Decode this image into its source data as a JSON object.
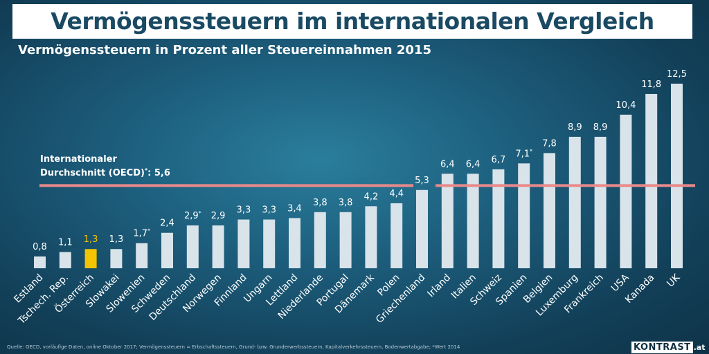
{
  "title": "Vermögenssteuern im internationalen Vergleich",
  "subtitle": "Vermögenssteuern in Prozent aller Steuereinnahmen 2015",
  "footer": "Quelle: OECD, vorläufige Daten, online Oktober 2017; Vermögenssteuern = Erbschaftssteuern, Grund- bzw. Grunderwerbssteuern, Kapitalverkehrssteuern, Bodenwertabgabe; *Wert 2014",
  "logo": {
    "word": "KONTRAST",
    "tld": ".at"
  },
  "colors": {
    "bar": "#d8e3ea",
    "highlight": "#f5c400",
    "average_line": "#e98a8a",
    "text": "#ffffff"
  },
  "chart_data": {
    "type": "bar",
    "title": "Vermögenssteuern in Prozent aller Steuereinnahmen 2015",
    "categories": [
      "Estland",
      "Tschech. Rep.",
      "Österreich",
      "Slowakei",
      "Slowenien",
      "Schweden",
      "Deutschland",
      "Norwegen",
      "Finnland",
      "Ungarn",
      "Lettland",
      "Niederlande",
      "Portugal",
      "Dänemark",
      "Polen",
      "Griechenland",
      "Irland",
      "Italien",
      "Schweiz",
      "Spanien",
      "Belgien",
      "Luxemburg",
      "Frankreich",
      "USA",
      "Kanada",
      "UK"
    ],
    "values": [
      0.8,
      1.1,
      1.3,
      1.3,
      1.7,
      2.4,
      2.9,
      2.9,
      3.3,
      3.3,
      3.4,
      3.8,
      3.8,
      4.2,
      4.4,
      5.3,
      6.4,
      6.4,
      6.7,
      7.1,
      7.8,
      8.9,
      8.9,
      10.4,
      11.8,
      12.5
    ],
    "value_labels": [
      "0,8",
      "1,1",
      "1,3",
      "1,3",
      "1,7",
      "2,4",
      "2,9",
      "2,9",
      "3,3",
      "3,3",
      "3,4",
      "3,8",
      "3,8",
      "4,2",
      "4,4",
      "5,3",
      "6,4",
      "6,4",
      "6,7",
      "7,1",
      "7,8",
      "8,9",
      "8,9",
      "10,4",
      "11,8",
      "12,5"
    ],
    "value_label_marks": [
      "",
      "",
      "",
      "",
      "*",
      "",
      "*",
      "",
      "",
      "",
      "",
      "",
      "",
      "",
      "",
      "",
      "",
      "",
      "",
      "*",
      "",
      "",
      "",
      "",
      "",
      ""
    ],
    "highlight": "Österreich",
    "ylim": [
      0,
      12.5
    ],
    "reference_line": {
      "value": 5.6,
      "label_line1": "Internationaler",
      "label_line2": "Durchschnitt (OECD)",
      "label_mark": "*",
      "label_value": ": 5,6"
    }
  }
}
